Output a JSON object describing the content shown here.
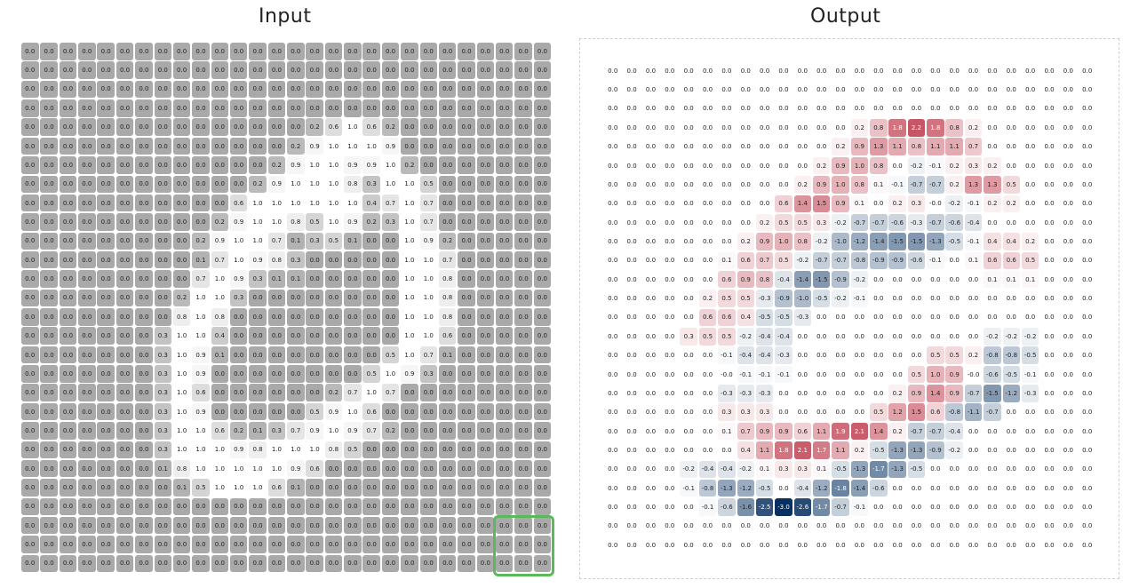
{
  "titles": {
    "input": "Input",
    "output": "Output"
  },
  "input_grid": [
    [
      0,
      0,
      0,
      0,
      0,
      0,
      0,
      0,
      0,
      0,
      0,
      0,
      0,
      0,
      0,
      0,
      0,
      0,
      0,
      0,
      0,
      0,
      0,
      0,
      0,
      0,
      0,
      0
    ],
    [
      0,
      0,
      0,
      0,
      0,
      0,
      0,
      0,
      0,
      0,
      0,
      0,
      0,
      0,
      0,
      0,
      0,
      0,
      0,
      0,
      0,
      0,
      0,
      0,
      0,
      0,
      0,
      0
    ],
    [
      0,
      0,
      0,
      0,
      0,
      0,
      0,
      0,
      0,
      0,
      0,
      0,
      0,
      0,
      0,
      0,
      0,
      0,
      0,
      0,
      0,
      0,
      0,
      0,
      0,
      0,
      0,
      0
    ],
    [
      0,
      0,
      0,
      0,
      0,
      0,
      0,
      0,
      0,
      0,
      0,
      0,
      0,
      0,
      0,
      0,
      0,
      0,
      0,
      0,
      0,
      0,
      0,
      0,
      0,
      0,
      0,
      0
    ],
    [
      0,
      0,
      0,
      0,
      0,
      0,
      0,
      0,
      0,
      0,
      0,
      0,
      0,
      0,
      0,
      0.2,
      0.6,
      1.0,
      0.6,
      0.2,
      0,
      0,
      0,
      0,
      0,
      0,
      0,
      0
    ],
    [
      0,
      0,
      0,
      0,
      0,
      0,
      0,
      0,
      0,
      0,
      0,
      0,
      0,
      0,
      0.2,
      0.9,
      1.0,
      1.0,
      1.0,
      0.9,
      0,
      0,
      0,
      0,
      0,
      0,
      0,
      0
    ],
    [
      0,
      0,
      0,
      0,
      0,
      0,
      0,
      0,
      0,
      0,
      0,
      0,
      0,
      0.2,
      0.9,
      1.0,
      1.0,
      0.9,
      0.9,
      1.0,
      0.2,
      0,
      0,
      0,
      0,
      0,
      0,
      0
    ],
    [
      0,
      0,
      0,
      0,
      0,
      0,
      0,
      0,
      0,
      0,
      0,
      0,
      0.2,
      0.9,
      1.0,
      1.0,
      1.0,
      0.8,
      0.3,
      1.0,
      1.0,
      0.5,
      0,
      0,
      0,
      0,
      0,
      0
    ],
    [
      0,
      0,
      0,
      0,
      0,
      0,
      0,
      0,
      0,
      0,
      0,
      0.6,
      1.0,
      1.0,
      1.0,
      1.0,
      1.0,
      1.0,
      0.4,
      0.7,
      1.0,
      0.7,
      0,
      0,
      0,
      0,
      0,
      0
    ],
    [
      0,
      0,
      0,
      0,
      0,
      0,
      0,
      0,
      0,
      0,
      0.2,
      0.9,
      1.0,
      1.0,
      0.8,
      0.5,
      1.0,
      0.9,
      0.2,
      0.3,
      1.0,
      0.7,
      0,
      0,
      0,
      0,
      0,
      0
    ],
    [
      0,
      0,
      0,
      0,
      0,
      0,
      0,
      0,
      0,
      0.2,
      0.9,
      1.0,
      1.0,
      0.7,
      0.1,
      0.3,
      0.5,
      0.1,
      0,
      0,
      1.0,
      0.9,
      0.2,
      0,
      0,
      0,
      0,
      0
    ],
    [
      0,
      0,
      0,
      0,
      0,
      0,
      0,
      0,
      0,
      0.1,
      0.7,
      1.0,
      0.9,
      0.8,
      0.3,
      0,
      0,
      0,
      0,
      0,
      1.0,
      1.0,
      0.7,
      0,
      0,
      0,
      0,
      0
    ],
    [
      0,
      0,
      0,
      0,
      0,
      0,
      0,
      0,
      0,
      0.7,
      1.0,
      0.9,
      0.3,
      0.1,
      0.1,
      0,
      0,
      0,
      0,
      0,
      1.0,
      1.0,
      0.8,
      0,
      0,
      0,
      0,
      0
    ],
    [
      0,
      0,
      0,
      0,
      0,
      0,
      0,
      0,
      0.2,
      1.0,
      1.0,
      0.3,
      0,
      0,
      0,
      0,
      0,
      0,
      0,
      0,
      1.0,
      1.0,
      0.8,
      0,
      0,
      0,
      0,
      0
    ],
    [
      0,
      0,
      0,
      0,
      0,
      0,
      0,
      0,
      0.8,
      1.0,
      0.8,
      0,
      0,
      0,
      0,
      0,
      0,
      0,
      0,
      0,
      1.0,
      1.0,
      0.8,
      0,
      0,
      0,
      0,
      0
    ],
    [
      0,
      0,
      0,
      0,
      0,
      0,
      0,
      0.3,
      1.0,
      1.0,
      0.4,
      0,
      0,
      0,
      0,
      0,
      0,
      0,
      0,
      0,
      1.0,
      1.0,
      0.6,
      0,
      0,
      0,
      0,
      0
    ],
    [
      0,
      0,
      0,
      0,
      0,
      0,
      0,
      0.3,
      1.0,
      0.9,
      0.1,
      0,
      0,
      0,
      0,
      0,
      0,
      0,
      0,
      0.5,
      1.0,
      0.7,
      0.1,
      0,
      0,
      0,
      0,
      0
    ],
    [
      0,
      0,
      0,
      0,
      0,
      0,
      0,
      0.3,
      1.0,
      0.9,
      0,
      0,
      0,
      0,
      0,
      0,
      0,
      0,
      0.5,
      1.0,
      0.9,
      0.3,
      0,
      0,
      0,
      0,
      0,
      0
    ],
    [
      0,
      0,
      0,
      0,
      0,
      0,
      0,
      0.3,
      1.0,
      0.6,
      0,
      0,
      0,
      0,
      0,
      0,
      0.2,
      0.7,
      1.0,
      0.7,
      0,
      0,
      0,
      0,
      0,
      0,
      0,
      0
    ],
    [
      0,
      0,
      0,
      0,
      0,
      0,
      0,
      0.3,
      1.0,
      0.9,
      0,
      0,
      0,
      0,
      0,
      0.5,
      0.9,
      1.0,
      0.6,
      0,
      0,
      0,
      0,
      0,
      0,
      0,
      0,
      0
    ],
    [
      0,
      0,
      0,
      0,
      0,
      0,
      0,
      0.3,
      1.0,
      1.0,
      0.6,
      0.2,
      0.1,
      0.3,
      0.7,
      0.9,
      1.0,
      0.9,
      0.7,
      0.2,
      0,
      0,
      0,
      0,
      0,
      0,
      0,
      0
    ],
    [
      0,
      0,
      0,
      0,
      0,
      0,
      0,
      0.3,
      1.0,
      1.0,
      1.0,
      0.9,
      0.8,
      1.0,
      1.0,
      1.0,
      0.8,
      0.5,
      0,
      0,
      0,
      0,
      0,
      0,
      0,
      0,
      0,
      0
    ],
    [
      0,
      0,
      0,
      0,
      0,
      0,
      0,
      0.1,
      0.8,
      1.0,
      1.0,
      1.0,
      1.0,
      1.0,
      0.9,
      0.6,
      0,
      0,
      0,
      0,
      0,
      0,
      0,
      0,
      0,
      0,
      0,
      0
    ],
    [
      0,
      0,
      0,
      0,
      0,
      0,
      0,
      0,
      0.1,
      0.5,
      1.0,
      1.0,
      1.0,
      0.6,
      0.1,
      0,
      0,
      0,
      0,
      0,
      0,
      0,
      0,
      0,
      0,
      0,
      0,
      0
    ],
    [
      0,
      0,
      0,
      0,
      0,
      0,
      0,
      0,
      0,
      0,
      0,
      0,
      0,
      0,
      0,
      0,
      0,
      0,
      0,
      0,
      0,
      0,
      0,
      0,
      0,
      0,
      0,
      0
    ],
    [
      0,
      0,
      0,
      0,
      0,
      0,
      0,
      0,
      0,
      0,
      0,
      0,
      0,
      0,
      0,
      0,
      0,
      0,
      0,
      0,
      0,
      0,
      0,
      0,
      0,
      0,
      0,
      0
    ],
    [
      0,
      0,
      0,
      0,
      0,
      0,
      0,
      0,
      0,
      0,
      0,
      0,
      0,
      0,
      0,
      0,
      0,
      0,
      0,
      0,
      0,
      0,
      0,
      0,
      0,
      0,
      0,
      0
    ],
    [
      0,
      0,
      0,
      0,
      0,
      0,
      0,
      0,
      0,
      0,
      0,
      0,
      0,
      0,
      0,
      0,
      0,
      0,
      0,
      0,
      0,
      0,
      0,
      0,
      0,
      0,
      0,
      0
    ]
  ],
  "output_grid": [
    [
      "0.0",
      "0.0",
      "0.0",
      "0.0",
      "0.0",
      "0.0",
      "0.0",
      "0.0",
      "0.0",
      "0.0",
      "0.0",
      "0.0",
      "0.0",
      "0.0",
      "0.0",
      "0.0",
      "0.0",
      "0.0",
      "0.0",
      "0.0",
      "0.0",
      "0.0",
      "0.0",
      "0.0",
      "0.0",
      "0.0"
    ],
    [
      "0.0",
      "0.0",
      "0.0",
      "0.0",
      "0.0",
      "0.0",
      "0.0",
      "0.0",
      "0.0",
      "0.0",
      "0.0",
      "0.0",
      "0.0",
      "0.0",
      "0.0",
      "0.0",
      "0.0",
      "0.0",
      "0.0",
      "0.0",
      "0.0",
      "0.0",
      "0.0",
      "0.0",
      "0.0",
      "0.0"
    ],
    [
      "0.0",
      "0.0",
      "0.0",
      "0.0",
      "0.0",
      "0.0",
      "0.0",
      "0.0",
      "0.0",
      "0.0",
      "0.0",
      "0.0",
      "0.0",
      "0.0",
      "0.0",
      "0.0",
      "0.0",
      "0.0",
      "0.0",
      "0.0",
      "0.0",
      "0.0",
      "0.0",
      "0.0",
      "0.0",
      "0.0"
    ],
    [
      "0.0",
      "0.0",
      "0.0",
      "0.0",
      "0.0",
      "0.0",
      "0.0",
      "0.0",
      "0.0",
      "0.0",
      "0.0",
      "0.0",
      "0.0",
      "0.2",
      "0.8",
      "1.8",
      "2.2",
      "1.8",
      "0.8",
      "0.2",
      "0.0",
      "0.0",
      "0.0",
      "0.0",
      "0.0",
      "0.0"
    ],
    [
      "0.0",
      "0.0",
      "0.0",
      "0.0",
      "0.0",
      "0.0",
      "0.0",
      "0.0",
      "0.0",
      "0.0",
      "0.0",
      "0.0",
      "0.2",
      "0.9",
      "1.3",
      "1.1",
      "0.8",
      "1.1",
      "1.1",
      "0.7",
      "0.0",
      "0.0",
      "0.0",
      "0.0",
      "0.0",
      "0.0"
    ],
    [
      "0.0",
      "0.0",
      "0.0",
      "0.0",
      "0.0",
      "0.0",
      "0.0",
      "0.0",
      "0.0",
      "0.0",
      "0.0",
      "0.2",
      "0.9",
      "1.0",
      "0.8",
      "0.0",
      "-0.2",
      "-0.1",
      "0.2",
      "0.3",
      "0.2",
      "0.0",
      "0.0",
      "0.0",
      "0.0",
      "0.0"
    ],
    [
      "0.0",
      "0.0",
      "0.0",
      "0.0",
      "0.0",
      "0.0",
      "0.0",
      "0.0",
      "0.0",
      "0.0",
      "0.2",
      "0.9",
      "1.0",
      "0.8",
      "0.1",
      "-0.1",
      "-0.7",
      "-0.7",
      "0.2",
      "1.3",
      "1.3",
      "0.5",
      "0.0",
      "0.0",
      "0.0",
      "0.0"
    ],
    [
      "0.0",
      "0.0",
      "0.0",
      "0.0",
      "0.0",
      "0.0",
      "0.0",
      "0.0",
      "0.0",
      "0.6",
      "1.4",
      "1.5",
      "0.9",
      "0.1",
      "0.0",
      "0.2",
      "0.3",
      "-0.0",
      "-0.2",
      "-0.1",
      "0.2",
      "0.2",
      "0.0",
      "0.0",
      "0.0",
      "0.0"
    ],
    [
      "0.0",
      "0.0",
      "0.0",
      "0.0",
      "0.0",
      "0.0",
      "0.0",
      "0.0",
      "0.2",
      "0.5",
      "0.5",
      "0.3",
      "-0.2",
      "-0.7",
      "-0.7",
      "-0.6",
      "-0.3",
      "-0.7",
      "-0.6",
      "-0.4",
      "0.0",
      "0.0",
      "0.0",
      "0.0",
      "0.0",
      "0.0"
    ],
    [
      "0.0",
      "0.0",
      "0.0",
      "0.0",
      "0.0",
      "0.0",
      "0.0",
      "0.2",
      "0.9",
      "1.0",
      "0.8",
      "-0.2",
      "-1.0",
      "-1.2",
      "-1.4",
      "-1.5",
      "-1.5",
      "-1.3",
      "-0.5",
      "-0.1",
      "0.4",
      "0.4",
      "0.2",
      "0.0",
      "0.0",
      "0.0"
    ],
    [
      "0.0",
      "0.0",
      "0.0",
      "0.0",
      "0.0",
      "0.0",
      "0.1",
      "0.6",
      "0.7",
      "0.5",
      "-0.2",
      "-0.7",
      "-0.7",
      "-0.8",
      "-0.9",
      "-0.9",
      "-0.6",
      "-0.1",
      "0.0",
      "0.1",
      "0.6",
      "0.6",
      "0.5",
      "0.0",
      "0.0",
      "0.0"
    ],
    [
      "0.0",
      "0.0",
      "0.0",
      "0.0",
      "0.0",
      "0.0",
      "0.6",
      "0.9",
      "0.8",
      "-0.4",
      "-1.4",
      "-1.5",
      "-0.9",
      "-0.2",
      "0.0",
      "0.0",
      "0.0",
      "0.0",
      "0.0",
      "0.0",
      "0.1",
      "0.1",
      "0.1",
      "0.0",
      "0.0",
      "0.0"
    ],
    [
      "0.0",
      "0.0",
      "0.0",
      "0.0",
      "0.0",
      "0.2",
      "0.5",
      "0.5",
      "-0.3",
      "-0.9",
      "-1.0",
      "-0.5",
      "-0.2",
      "-0.1",
      "0.0",
      "0.0",
      "0.0",
      "0.0",
      "0.0",
      "0.0",
      "0.0",
      "0.0",
      "0.0",
      "0.0",
      "0.0",
      "0.0"
    ],
    [
      "0.0",
      "0.0",
      "0.0",
      "0.0",
      "0.0",
      "0.6",
      "0.6",
      "0.4",
      "-0.5",
      "-0.5",
      "-0.3",
      "0.0",
      "0.0",
      "0.0",
      "0.0",
      "0.0",
      "0.0",
      "0.0",
      "0.0",
      "0.0",
      "0.0",
      "0.0",
      "0.0",
      "0.0",
      "0.0",
      "0.0"
    ],
    [
      "0.0",
      "0.0",
      "0.0",
      "0.0",
      "0.3",
      "0.5",
      "0.5",
      "-0.2",
      "-0.4",
      "-0.4",
      "0.0",
      "0.0",
      "0.0",
      "0.0",
      "0.0",
      "0.0",
      "0.0",
      "0.0",
      "0.0",
      "0.0",
      "-0.2",
      "-0.2",
      "-0.2",
      "0.0",
      "0.0",
      "0.0"
    ],
    [
      "0.0",
      "0.0",
      "0.0",
      "0.0",
      "0.0",
      "0.0",
      "-0.1",
      "-0.4",
      "-0.4",
      "-0.3",
      "0.0",
      "0.0",
      "0.0",
      "0.0",
      "0.0",
      "0.0",
      "0.0",
      "0.5",
      "0.5",
      "0.2",
      "-0.8",
      "-0.8",
      "-0.5",
      "0.0",
      "0.0",
      "0.0"
    ],
    [
      "0.0",
      "0.0",
      "0.0",
      "0.0",
      "0.0",
      "0.0",
      "-0.0",
      "-0.1",
      "-0.1",
      "-0.1",
      "0.0",
      "0.0",
      "0.0",
      "0.0",
      "0.0",
      "0.0",
      "0.5",
      "1.0",
      "0.9",
      "-0.0",
      "-0.6",
      "-0.5",
      "-0.1",
      "0.0",
      "0.0",
      "0.0"
    ],
    [
      "0.0",
      "0.0",
      "0.0",
      "0.0",
      "0.0",
      "0.0",
      "-0.3",
      "-0.3",
      "-0.3",
      "0.0",
      "0.0",
      "0.0",
      "0.0",
      "0.0",
      "0.0",
      "0.2",
      "0.9",
      "1.4",
      "0.9",
      "-0.7",
      "-1.5",
      "-1.2",
      "-0.3",
      "0.0",
      "0.0",
      "0.0"
    ],
    [
      "0.0",
      "0.0",
      "0.0",
      "0.0",
      "0.0",
      "0.0",
      "0.3",
      "0.3",
      "0.3",
      "0.0",
      "0.0",
      "0.0",
      "0.0",
      "0.0",
      "0.5",
      "1.2",
      "1.5",
      "0.6",
      "-0.8",
      "-1.1",
      "-0.7",
      "0.0",
      "0.0",
      "0.0",
      "0.0",
      "0.0"
    ],
    [
      "0.0",
      "0.0",
      "0.0",
      "0.0",
      "0.0",
      "0.0",
      "0.1",
      "0.7",
      "0.9",
      "0.9",
      "0.6",
      "1.1",
      "1.9",
      "2.1",
      "1.4",
      "0.2",
      "-0.7",
      "-0.7",
      "-0.4",
      "0.0",
      "0.0",
      "0.0",
      "0.0",
      "0.0",
      "0.0",
      "0.0"
    ],
    [
      "0.0",
      "0.0",
      "0.0",
      "0.0",
      "0.0",
      "0.0",
      "0.0",
      "0.4",
      "1.1",
      "1.8",
      "2.1",
      "1.7",
      "1.1",
      "0.2",
      "-0.5",
      "-1.3",
      "-1.3",
      "-0.9",
      "-0.2",
      "0.0",
      "0.0",
      "0.0",
      "0.0",
      "0.0",
      "0.0",
      "0.0"
    ],
    [
      "0.0",
      "0.0",
      "0.0",
      "0.0",
      "-0.2",
      "-0.4",
      "-0.4",
      "-0.2",
      "0.1",
      "0.3",
      "0.3",
      "0.1",
      "-0.5",
      "-1.3",
      "-1.7",
      "-1.3",
      "-0.5",
      "0.0",
      "0.0",
      "0.0",
      "0.0",
      "0.0",
      "0.0",
      "0.0",
      "0.0",
      "0.0"
    ],
    [
      "0.0",
      "0.0",
      "0.0",
      "0.0",
      "-0.1",
      "-0.8",
      "-1.3",
      "-1.2",
      "-0.5",
      "0.0",
      "-0.4",
      "-1.2",
      "-1.8",
      "-1.4",
      "-0.6",
      "0.0",
      "0.0",
      "0.0",
      "0.0",
      "0.0",
      "0.0",
      "0.0",
      "0.0",
      "0.0",
      "0.0",
      "0.0"
    ],
    [
      "0.0",
      "0.0",
      "0.0",
      "0.0",
      "0.0",
      "-0.1",
      "-0.6",
      "-1.6",
      "-2.5",
      "-3.0",
      "-2.6",
      "-1.7",
      "-0.7",
      "-0.1",
      "0.0",
      "0.0",
      "0.0",
      "0.0",
      "0.0",
      "0.0",
      "0.0",
      "0.0",
      "0.0",
      "0.0",
      "0.0",
      "0.0"
    ],
    [
      "0.0",
      "0.0",
      "0.0",
      "0.0",
      "0.0",
      "0.0",
      "0.0",
      "0.0",
      "0.0",
      "0.0",
      "0.0",
      "0.0",
      "0.0",
      "0.0",
      "0.0",
      "0.0",
      "0.0",
      "0.0",
      "0.0",
      "0.0",
      "0.0",
      "0.0",
      "0.0",
      "0.0",
      "0.0",
      "0.0"
    ],
    [
      "0.0",
      "0.0",
      "0.0",
      "0.0",
      "0.0",
      "0.0",
      "0.0",
      "0.0",
      "0.0",
      "0.0",
      "0.0",
      "0.0",
      "0.0",
      "0.0",
      "0.0",
      "0.0",
      "0.0",
      "0.0",
      "0.0",
      "0.0",
      "0.0",
      "0.0",
      "0.0",
      "0.0",
      "0.0",
      "0.0"
    ]
  ],
  "kernel_window": {
    "row": 25,
    "col": 25,
    "size": 3
  },
  "colors": {
    "kernel_border": "#5cb85c",
    "positive": "#b2182b",
    "negative": "#2166ac",
    "input_zero": "#a9a9a9",
    "input_one": "#ffffff"
  }
}
